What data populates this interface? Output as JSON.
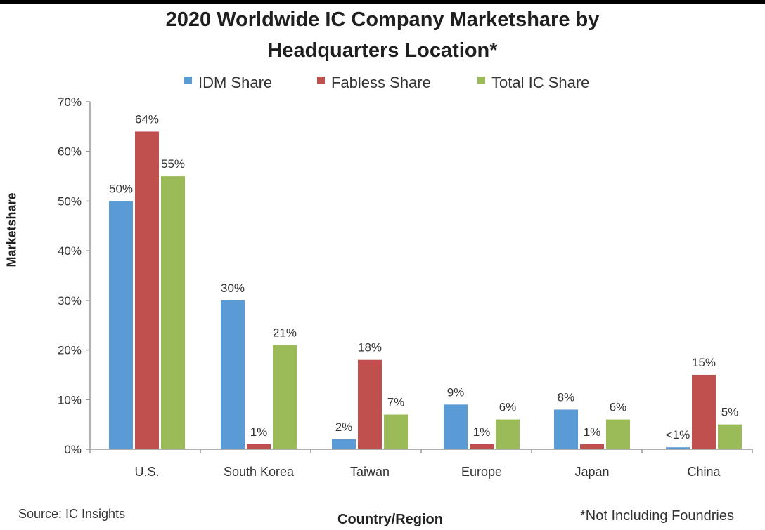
{
  "chart_data": {
    "type": "bar",
    "title_line1": "2020 Worldwide IC Company Marketshare by",
    "title_line2": "Headquarters Location*",
    "xlabel": "Country/Region",
    "ylabel": "Marketshare",
    "ylim": [
      0,
      70
    ],
    "yticks": [
      "0%",
      "10%",
      "20%",
      "30%",
      "40%",
      "50%",
      "60%",
      "70%"
    ],
    "categories": [
      "U.S.",
      "South Korea",
      "Taiwan",
      "Europe",
      "Japan",
      "China"
    ],
    "series": [
      {
        "name": "IDM Share",
        "color": "#5b9bd5",
        "values": [
          50,
          30,
          2,
          9,
          8,
          0.4
        ],
        "labels": [
          "50%",
          "30%",
          "2%",
          "9%",
          "8%",
          "<1%"
        ]
      },
      {
        "name": "Fabless Share",
        "color": "#c0504d",
        "values": [
          64,
          1,
          18,
          1,
          1,
          15
        ],
        "labels": [
          "64%",
          "1%",
          "18%",
          "1%",
          "1%",
          "15%"
        ]
      },
      {
        "name": "Total IC Share",
        "color": "#9bbb59",
        "values": [
          55,
          21,
          7,
          6,
          6,
          5
        ],
        "labels": [
          "55%",
          "21%",
          "7%",
          "6%",
          "6%",
          "5%"
        ]
      }
    ],
    "legend_position": "top-center",
    "grid": false
  },
  "footer": {
    "source": "Source: IC Insights",
    "note": "*Not Including Foundries"
  }
}
